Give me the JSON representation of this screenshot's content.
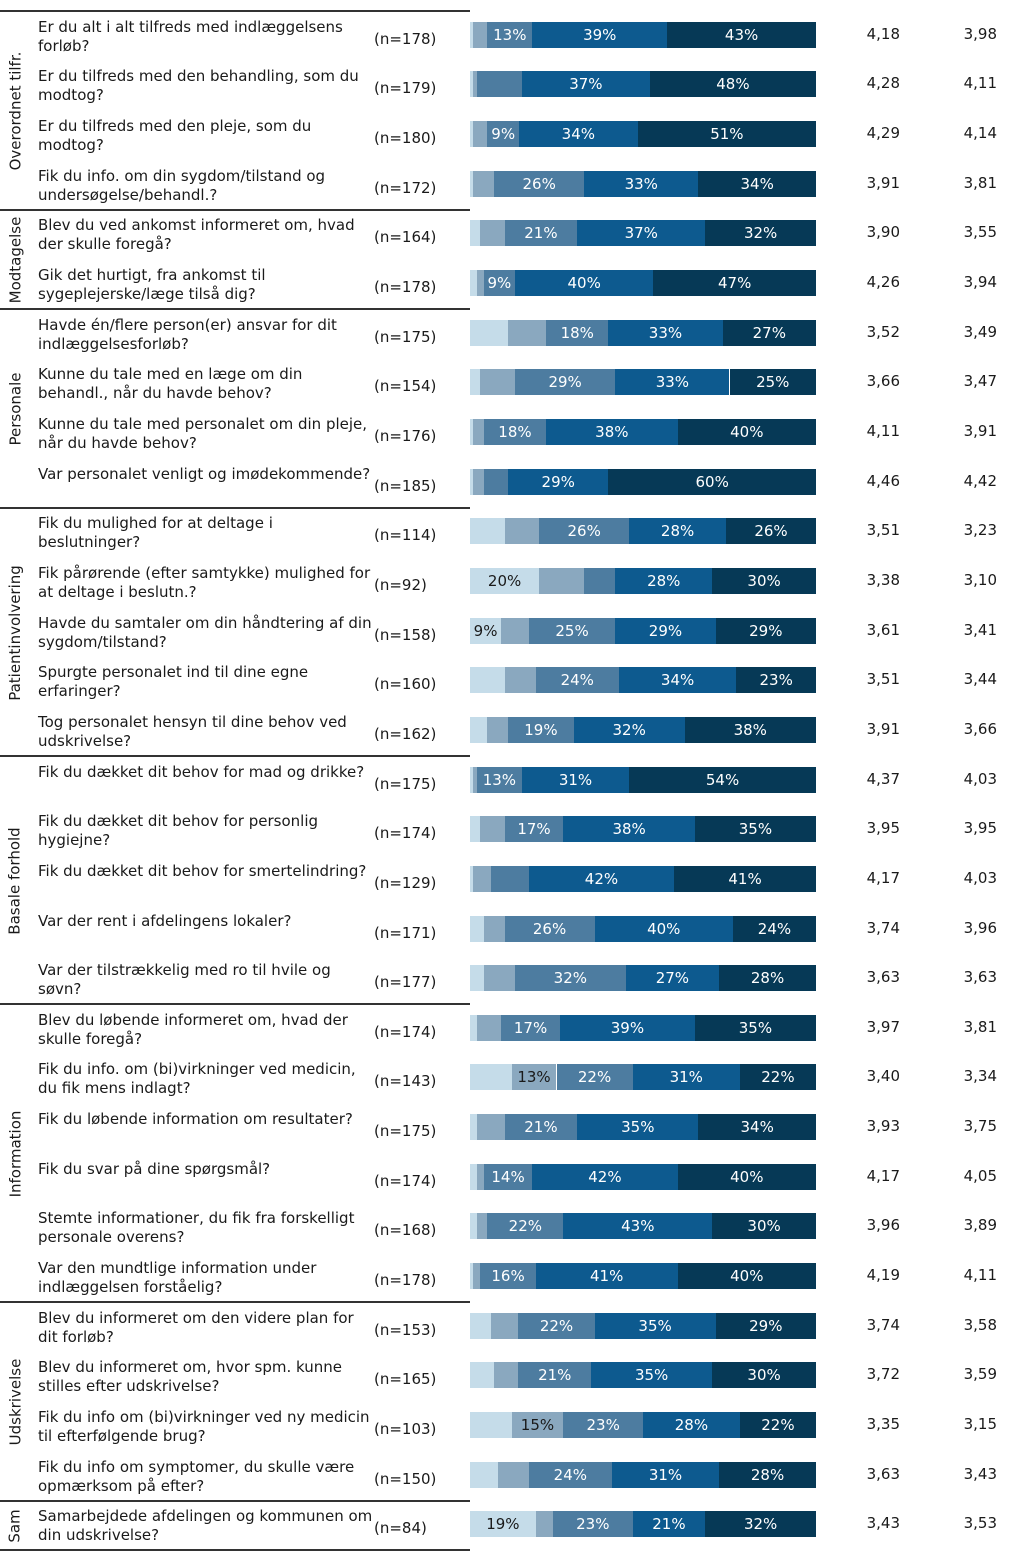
{
  "chart_data": {
    "type": "bar",
    "orientation": "horizontal",
    "stacked": true,
    "legend": "none",
    "grid": false,
    "segment_colors": [
      "#c5dce9",
      "#8aa8bf",
      "#4d7ca0",
      "#0d5a8f",
      "#063956"
    ],
    "sections": [
      {
        "name": "Overordnet tilfr.",
        "rows": [
          {
            "question": "Er du alt i alt tilfreds med indlæggelsens forløb?",
            "n": "(n=178)",
            "segments": [
              1,
              4,
              13,
              39,
              43
            ],
            "labels": [
              "",
              "",
              "13%",
              "39%",
              "43%"
            ],
            "v1": "4,18",
            "v2": "3,98"
          },
          {
            "question": "Er du tilfreds med den behandling, som du modtog?",
            "n": "(n=179)",
            "segments": [
              1,
              1,
              13,
              37,
              48
            ],
            "labels": [
              "",
              "",
              "",
              "37%",
              "48%"
            ],
            "v1": "4,28",
            "v2": "4,11"
          },
          {
            "question": "Er du tilfreds med den pleje, som du modtog?",
            "n": "(n=180)",
            "segments": [
              1,
              4,
              9,
              34,
              51
            ],
            "labels": [
              "",
              "",
              "9%",
              "34%",
              "51%"
            ],
            "v1": "4,29",
            "v2": "4,14"
          },
          {
            "question": "Fik du info. om din sygdom/tilstand og undersøgelse/behandl.?",
            "n": "(n=172)",
            "segments": [
              1,
              6,
              26,
              33,
              34
            ],
            "labels": [
              "",
              "",
              "26%",
              "33%",
              "34%"
            ],
            "v1": "3,91",
            "v2": "3,81"
          }
        ]
      },
      {
        "name": "Modtagelse",
        "rows": [
          {
            "question": "Blev du ved ankomst informeret om, hvad der skulle foregå?",
            "n": "(n=164)",
            "segments": [
              3,
              7,
              21,
              37,
              32
            ],
            "labels": [
              "",
              "",
              "21%",
              "37%",
              "32%"
            ],
            "v1": "3,90",
            "v2": "3,55"
          },
          {
            "question": "Gik det hurtigt, fra ankomst til sygeplejerske/læge tilså dig?",
            "n": "(n=178)",
            "segments": [
              2,
              2,
              9,
              40,
              47
            ],
            "labels": [
              "",
              "",
              "9%",
              "40%",
              "47%"
            ],
            "v1": "4,26",
            "v2": "3,94"
          }
        ]
      },
      {
        "name": "Personale",
        "rows": [
          {
            "question": "Havde én/flere person(er) ansvar for dit indlæggelsesforløb?",
            "n": "(n=175)",
            "segments": [
              11,
              11,
              18,
              33,
              27
            ],
            "labels": [
              "",
              "",
              "18%",
              "33%",
              "27%"
            ],
            "v1": "3,52",
            "v2": "3,49"
          },
          {
            "question": "Kunne du tale med en læge om din behandl., når du havde behov?",
            "n": "(n=154)",
            "segments": [
              3,
              10,
              29,
              33,
              25
            ],
            "labels": [
              "",
              "",
              "29%",
              "33%",
              "25%"
            ],
            "v1": "3,66",
            "v2": "3,47"
          },
          {
            "question": "Kunne du tale med personalet om din pleje, når du havde behov?",
            "n": "(n=176)",
            "segments": [
              1,
              3,
              18,
              38,
              40
            ],
            "labels": [
              "",
              "",
              "18%",
              "38%",
              "40%"
            ],
            "v1": "4,11",
            "v2": "3,91"
          },
          {
            "question": "Var personalet venligt og imødekommende?",
            "n": "(n=185)",
            "segments": [
              1,
              3,
              7,
              29,
              60
            ],
            "labels": [
              "",
              "",
              "",
              "29%",
              "60%"
            ],
            "v1": "4,46",
            "v2": "4,42"
          }
        ]
      },
      {
        "name": "Patientinvolvering",
        "rows": [
          {
            "question": "Fik du mulighed for at deltage i beslutninger?",
            "n": "(n=114)",
            "segments": [
              10,
              10,
              26,
              28,
              26
            ],
            "labels": [
              "",
              "",
              "26%",
              "28%",
              "26%"
            ],
            "v1": "3,51",
            "v2": "3,23"
          },
          {
            "question": "Fik pårørende (efter samtykke) mulighed for at deltage i beslutn.?",
            "n": "(n=92)",
            "segments": [
              20,
              13,
              9,
              28,
              30
            ],
            "labels": [
              "20%",
              "",
              "",
              "28%",
              "30%"
            ],
            "v1": "3,38",
            "v2": "3,10"
          },
          {
            "question": "Havde du samtaler om din håndtering af din sygdom/tilstand?",
            "n": "(n=158)",
            "segments": [
              9,
              8,
              25,
              29,
              29
            ],
            "labels": [
              "9%",
              "",
              "25%",
              "29%",
              "29%"
            ],
            "v1": "3,61",
            "v2": "3,41"
          },
          {
            "question": "Spurgte personalet ind til dine egne erfaringer?",
            "n": "(n=160)",
            "segments": [
              10,
              9,
              24,
              34,
              23
            ],
            "labels": [
              "",
              "",
              "24%",
              "34%",
              "23%"
            ],
            "v1": "3,51",
            "v2": "3,44"
          },
          {
            "question": "Tog personalet hensyn til dine behov ved udskrivelse?",
            "n": "(n=162)",
            "segments": [
              5,
              6,
              19,
              32,
              38
            ],
            "labels": [
              "",
              "",
              "19%",
              "32%",
              "38%"
            ],
            "v1": "3,91",
            "v2": "3,66"
          }
        ]
      },
      {
        "name": "Basale forhold",
        "rows": [
          {
            "question": "Fik du dækket dit behov for mad og drikke?",
            "n": "(n=175)",
            "segments": [
              1,
              1,
              13,
              31,
              54
            ],
            "labels": [
              "",
              "",
              "13%",
              "31%",
              "54%"
            ],
            "v1": "4,37",
            "v2": "4,03"
          },
          {
            "question": "Fik du dækket dit behov for personlig hygiejne?",
            "n": "(n=174)",
            "segments": [
              3,
              7,
              17,
              38,
              35
            ],
            "labels": [
              "",
              "",
              "17%",
              "38%",
              "35%"
            ],
            "v1": "3,95",
            "v2": "3,95"
          },
          {
            "question": "Fik du dækket dit behov for smertelindring?",
            "n": "(n=129)",
            "segments": [
              1,
              5,
              11,
              42,
              41
            ],
            "labels": [
              "",
              "",
              "",
              "42%",
              "41%"
            ],
            "v1": "4,17",
            "v2": "4,03"
          },
          {
            "question": "Var der rent i afdelingens lokaler?",
            "n": "(n=171)",
            "segments": [
              4,
              6,
              26,
              40,
              24
            ],
            "labels": [
              "",
              "",
              "26%",
              "40%",
              "24%"
            ],
            "v1": "3,74",
            "v2": "3,96"
          },
          {
            "question": "Var der tilstrækkelig med ro til hvile og søvn?",
            "n": "(n=177)",
            "segments": [
              4,
              9,
              32,
              27,
              28
            ],
            "labels": [
              "",
              "",
              "32%",
              "27%",
              "28%"
            ],
            "v1": "3,63",
            "v2": "3,63"
          }
        ]
      },
      {
        "name": "Information",
        "rows": [
          {
            "question": "Blev du løbende informeret om, hvad der skulle foregå?",
            "n": "(n=174)",
            "segments": [
              2,
              7,
              17,
              39,
              35
            ],
            "labels": [
              "",
              "",
              "17%",
              "39%",
              "35%"
            ],
            "v1": "3,97",
            "v2": "3,81"
          },
          {
            "question": "Fik du info. om (bi)virkninger ved medicin, du fik mens indlagt?",
            "n": "(n=143)",
            "segments": [
              12,
              13,
              22,
              31,
              22
            ],
            "labels": [
              "",
              "13%",
              "22%",
              "31%",
              "22%"
            ],
            "v1": "3,40",
            "v2": "3,34"
          },
          {
            "question": "Fik du løbende information om resultater?",
            "n": "(n=175)",
            "segments": [
              2,
              8,
              21,
              35,
              34
            ],
            "labels": [
              "",
              "",
              "21%",
              "35%",
              "34%"
            ],
            "v1": "3,93",
            "v2": "3,75"
          },
          {
            "question": "Fik du svar på dine spørgsmål?",
            "n": "(n=174)",
            "segments": [
              2,
              2,
              14,
              42,
              40
            ],
            "labels": [
              "",
              "",
              "14%",
              "42%",
              "40%"
            ],
            "v1": "4,17",
            "v2": "4,05"
          },
          {
            "question": "Stemte informationer, du fik fra forskelligt personale overens?",
            "n": "(n=168)",
            "segments": [
              2,
              3,
              22,
              43,
              30
            ],
            "labels": [
              "",
              "",
              "22%",
              "43%",
              "30%"
            ],
            "v1": "3,96",
            "v2": "3,89"
          },
          {
            "question": "Var den mundtlige information under indlæggelsen forståelig?",
            "n": "(n=178)",
            "segments": [
              1,
              2,
              16,
              41,
              40
            ],
            "labels": [
              "",
              "",
              "16%",
              "41%",
              "40%"
            ],
            "v1": "4,19",
            "v2": "4,11"
          }
        ]
      },
      {
        "name": "Udskrivelse",
        "rows": [
          {
            "question": "Blev du informeret om den videre plan for dit forløb?",
            "n": "(n=153)",
            "segments": [
              6,
              8,
              22,
              35,
              29
            ],
            "labels": [
              "",
              "",
              "22%",
              "35%",
              "29%"
            ],
            "v1": "3,74",
            "v2": "3,58"
          },
          {
            "question": "Blev du informeret om, hvor spm. kunne stilles efter udskrivelse?",
            "n": "(n=165)",
            "segments": [
              7,
              7,
              21,
              35,
              30
            ],
            "labels": [
              "",
              "",
              "21%",
              "35%",
              "30%"
            ],
            "v1": "3,72",
            "v2": "3,59"
          },
          {
            "question": "Fik du info om (bi)virkninger ved ny medicin til efterfølgende brug?",
            "n": "(n=103)",
            "segments": [
              12,
              15,
              23,
              28,
              22
            ],
            "labels": [
              "",
              "15%",
              "23%",
              "28%",
              "22%"
            ],
            "v1": "3,35",
            "v2": "3,15"
          },
          {
            "question": "Fik du info om symptomer, du skulle være opmærksom på efter?",
            "n": "(n=150)",
            "segments": [
              8,
              9,
              24,
              31,
              28
            ],
            "labels": [
              "",
              "",
              "24%",
              "31%",
              "28%"
            ],
            "v1": "3,63",
            "v2": "3,43"
          }
        ]
      },
      {
        "name": "Sam",
        "rows": [
          {
            "question": "Samarbejdede afdelingen og kommunen om din udskrivelse?",
            "n": "(n=84)",
            "segments": [
              19,
              5,
              23,
              21,
              32
            ],
            "labels": [
              "19%",
              "",
              "23%",
              "21%",
              "32%"
            ],
            "v1": "3,43",
            "v2": "3,53"
          }
        ]
      }
    ]
  }
}
